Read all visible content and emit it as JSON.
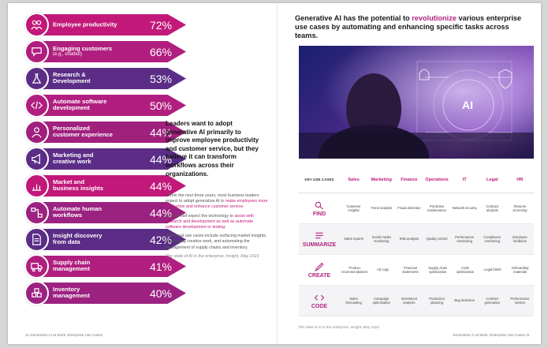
{
  "bars": [
    {
      "label": "Employee productivity",
      "sub": "",
      "pct": "72%",
      "color": "#c2187a",
      "icon": "people-icon"
    },
    {
      "label": "Engaging customers",
      "sub": "(e.g., chatbot)",
      "pct": "66%",
      "color": "#b01f7f",
      "icon": "chat-icon"
    },
    {
      "label": "Research &",
      "label2": "Development",
      "sub": "",
      "pct": "53%",
      "color": "#5b2d86",
      "icon": "flask-icon"
    },
    {
      "label": "Automate software",
      "label2": "development",
      "sub": "",
      "pct": "50%",
      "color": "#b01f7f",
      "icon": "code-icon"
    },
    {
      "label": "Personalized",
      "label2": "customer experience",
      "sub": "",
      "pct": "44%",
      "color": "#a0207e",
      "icon": "person-icon"
    },
    {
      "label": "Marketing and",
      "label2": "creative work",
      "sub": "",
      "pct": "44%",
      "color": "#5b2d86",
      "icon": "megaphone-icon"
    },
    {
      "label": "Market and",
      "label2": "business insights",
      "sub": "",
      "pct": "44%",
      "color": "#c2187a",
      "icon": "chart-icon"
    },
    {
      "label": "Automate human",
      "label2": "workflows",
      "sub": "",
      "pct": "44%",
      "color": "#9c2281",
      "icon": "workflow-icon"
    },
    {
      "label": "Insight discovery",
      "label2": "from data",
      "sub": "",
      "pct": "42%",
      "color": "#5b2d86",
      "icon": "document-icon"
    },
    {
      "label": "Supply chain",
      "label2": "management",
      "sub": "",
      "pct": "41%",
      "color": "#b01f7f",
      "icon": "truck-icon"
    },
    {
      "label": "Inventory",
      "label2": "management",
      "sub": "",
      "pct": "40%",
      "color": "#9c2281",
      "icon": "boxes-icon"
    }
  ],
  "intro": "Leaders want to adopt generative AI primarily to improve employee productivity and customer service, but they believe it can transform workflows across their organizations.",
  "body": {
    "p1_a": "Within the next three years, most business leaders expect to adopt generative AI to ",
    "p1_hl": "make employees more productive and enhance customer service.",
    "p2_a": "Around half expect the technology to ",
    "p2_hl": "assist with research and development as well as automate software development or testing.",
    "p3": "Additional use cases include surfacing market insights, developing creative work, and automating the management of supply chains and inventory.",
    "source": "The state of AI in the enterprise, Insight, May 2023"
  },
  "footer_left": "11     Generative AI at Work: Enterprise Use Cases",
  "footer_right": "Generative AI at Work: Enterprise Use Cases     11",
  "headline_a": "Generative AI has the potential to ",
  "headline_accent": "revolutionize",
  "headline_b": " various enterprise use cases by automating and enhancing specific tasks across teams.",
  "hero_label": "AI",
  "table": {
    "corner": "KEY USE CASES",
    "columns": [
      "Sales",
      "Marketing",
      "Finance",
      "Operations",
      "IT",
      "Legal",
      "HR"
    ],
    "rows": [
      {
        "label": "FIND",
        "icon": "magnifier-icon",
        "cells": [
          "Customer insights",
          "Trend analysis",
          "Fraud detection",
          "Predictive maintenance",
          "Network security",
          "Contract analysis",
          "Resume screening"
        ]
      },
      {
        "label": "SUMMARIZE",
        "icon": "summary-icon",
        "cells": [
          "Sales reports",
          "Social media monitoring",
          "Risk analysis",
          "Quality control",
          "Performance monitoring",
          "Compliance monitoring",
          "Employee feedback"
        ]
      },
      {
        "label": "CREATE",
        "icon": "pencil-icon",
        "cells": [
          "Product recommendations",
          "Ad copy",
          "Financial statements",
          "Supply chain optimization",
          "Code optimization",
          "Legal briefs",
          "Onboarding materials"
        ]
      },
      {
        "label": "CODE",
        "icon": "code-brackets-icon",
        "cells": [
          "Sales forecasting",
          "Campaign optimization",
          "Investment analysis",
          "Production planning",
          "Bug detection",
          "Contract generation",
          "Performance metrics"
        ]
      }
    ]
  },
  "table_source": "The state of AI in the enterprise, Insight, May 2023"
}
